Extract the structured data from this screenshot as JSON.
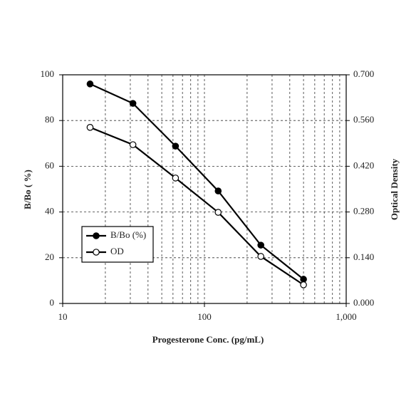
{
  "chart_data": {
    "type": "line",
    "x_label": "Progesterone Conc. (pg/mL)",
    "y_label": "B/Bo ( %)",
    "y2_label": "Optical Density",
    "x": [
      15.6,
      31.3,
      62.5,
      125,
      250,
      500
    ],
    "series": [
      {
        "name": "B/Bo (%)",
        "color": "#000000",
        "marker_fill": "#000000",
        "values": [
          96,
          87.5,
          68.8,
          49.2,
          25.5,
          10.6
        ]
      },
      {
        "name": "OD",
        "color": "#000000",
        "marker_fill": "#ffffff",
        "axis": "y2",
        "values": [
          0.539,
          0.486,
          0.384,
          0.279,
          0.144,
          0.057
        ]
      }
    ],
    "x_scale": "log",
    "xlim": [
      10,
      1000
    ],
    "xticks": [
      10,
      100,
      {
        "value": 1000,
        "label": "1,000"
      }
    ],
    "ylim": [
      0,
      100
    ],
    "yticks": [
      0,
      20,
      40,
      60,
      80,
      100
    ],
    "y2lim": [
      0,
      0.7
    ],
    "y2ticks": [
      {
        "value": 0,
        "label": "0.000"
      },
      {
        "value": 0.14,
        "label": "0.140"
      },
      {
        "value": 0.28,
        "label": "0.280"
      },
      {
        "value": 0.42,
        "label": "0.420"
      },
      {
        "value": 0.56,
        "label": "0.560"
      },
      {
        "value": 0.7,
        "label": "0.700"
      }
    ],
    "grid": true,
    "legend": "lower left"
  }
}
